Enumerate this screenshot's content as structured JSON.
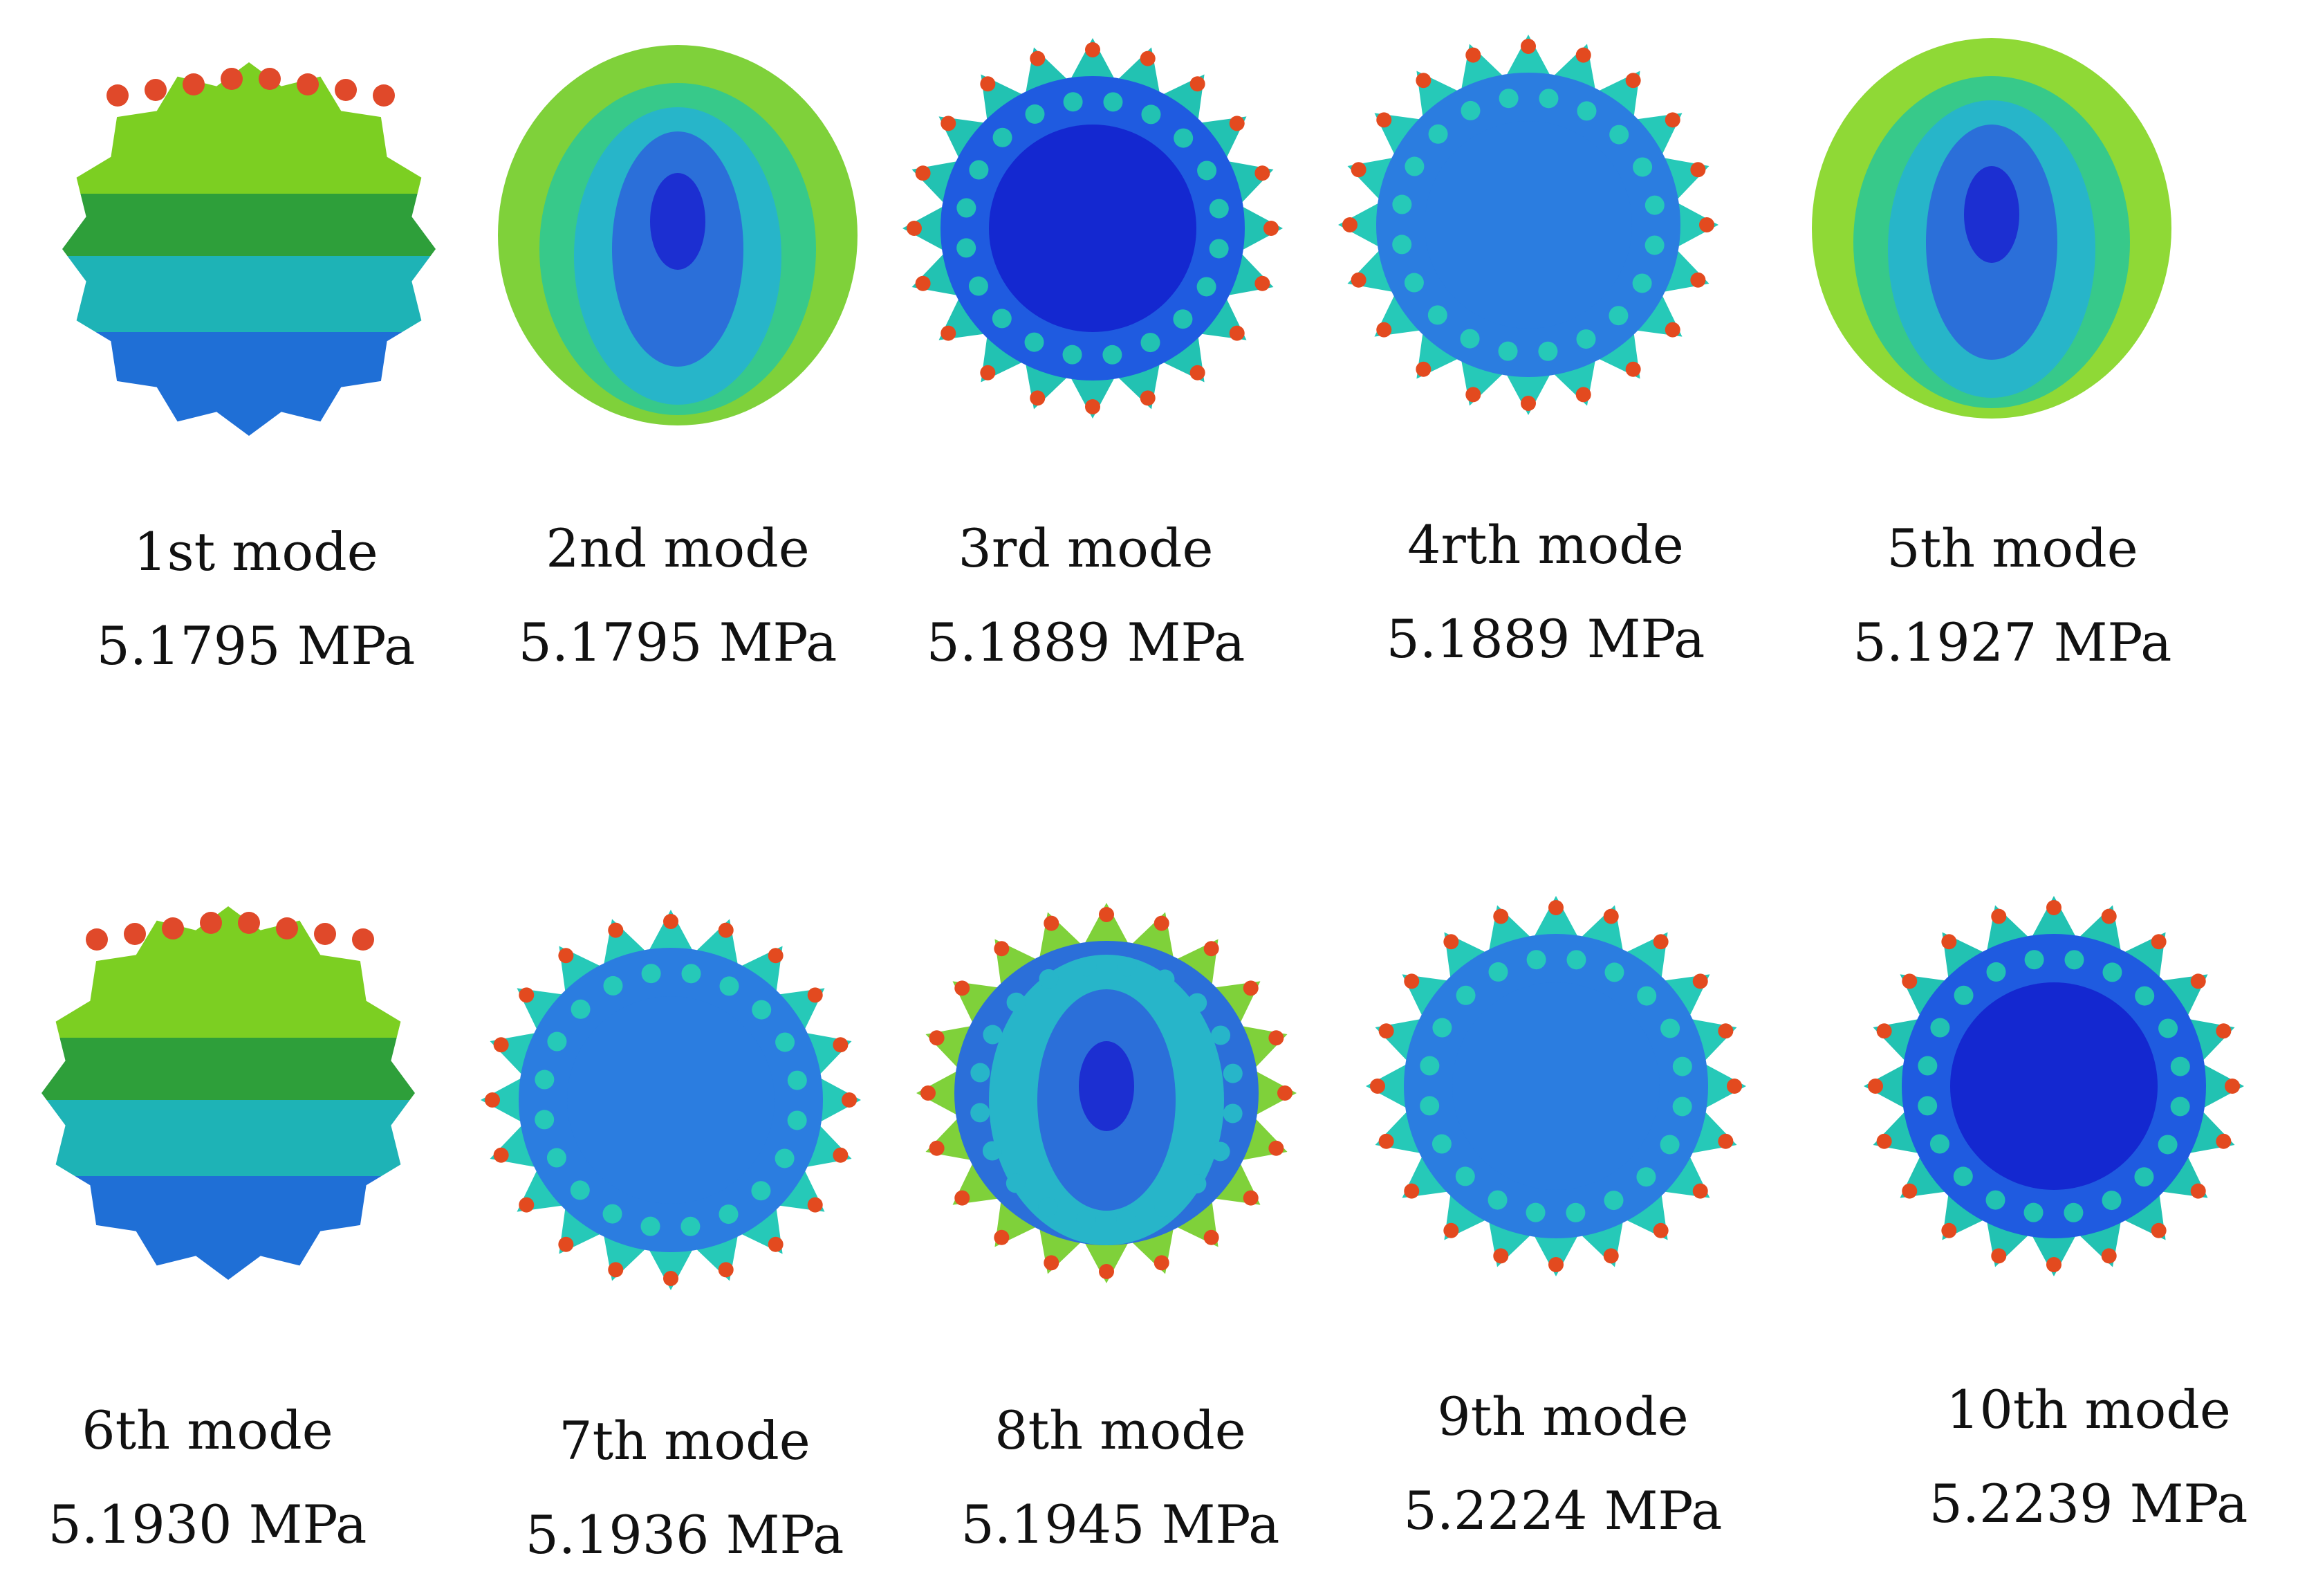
{
  "modes": [
    {
      "label": "1st mode",
      "value": "5.1795 MPa",
      "pattern": "sphere-bands-top",
      "colors": {
        "a": "#2e9f3a",
        "b": "#7ccf22",
        "c": "#1eb3b6",
        "d": "#1f6fd6"
      }
    },
    {
      "label": "2nd mode",
      "value": "5.1795 MPa",
      "pattern": "egg-contours",
      "colors": {
        "a": "#1c2fd1",
        "b": "#2b6fd9",
        "c": "#27b5c9",
        "d": "#7fd13a"
      }
    },
    {
      "label": "3rd mode",
      "value": "5.1889 MPa",
      "pattern": "star-lobes",
      "colors": {
        "a": "#1428d0",
        "b": "#1f5be0",
        "c": "#22c2b2",
        "d": "#f2d12a"
      }
    },
    {
      "label": "4rth mode",
      "value": "5.1889 MPa",
      "pattern": "star-lobes-light",
      "colors": {
        "a": "#1540d8",
        "b": "#2b7de0",
        "c": "#26c9b8",
        "d": "#f2d12a"
      }
    },
    {
      "label": "5th mode",
      "value": "5.1927 MPa",
      "pattern": "egg-contours",
      "colors": {
        "a": "#1c2fd1",
        "b": "#2b6fd9",
        "c": "#27b5c9",
        "d": "#8fd936"
      }
    },
    {
      "label": "6th mode",
      "value": "5.1930 MPa",
      "pattern": "sphere-bands-top",
      "colors": {
        "a": "#2e9f3a",
        "b": "#7ccf22",
        "c": "#1eb3b6",
        "d": "#1f6fd6"
      }
    },
    {
      "label": "7th mode",
      "value": "5.1936 MPa",
      "pattern": "star-lobes-light",
      "colors": {
        "a": "#1540d8",
        "b": "#2b7de0",
        "c": "#26c9b8",
        "d": "#f2d12a"
      }
    },
    {
      "label": "8th mode",
      "value": "5.1945 MPa",
      "pattern": "egg-star",
      "colors": {
        "a": "#1c2fd1",
        "b": "#2b6fd9",
        "c": "#27b5c9",
        "d": "#7fd13a"
      }
    },
    {
      "label": "9th mode",
      "value": "5.2224 MPa",
      "pattern": "star-lobes-light",
      "colors": {
        "a": "#1540d8",
        "b": "#2b7de0",
        "c": "#26c9b8",
        "d": "#f2d12a"
      }
    },
    {
      "label": "10th mode",
      "value": "5.2239 MPa",
      "pattern": "star-lobes",
      "colors": {
        "a": "#1428d0",
        "b": "#1f5be0",
        "c": "#22c2b2",
        "d": "#f2d12a"
      }
    }
  ]
}
